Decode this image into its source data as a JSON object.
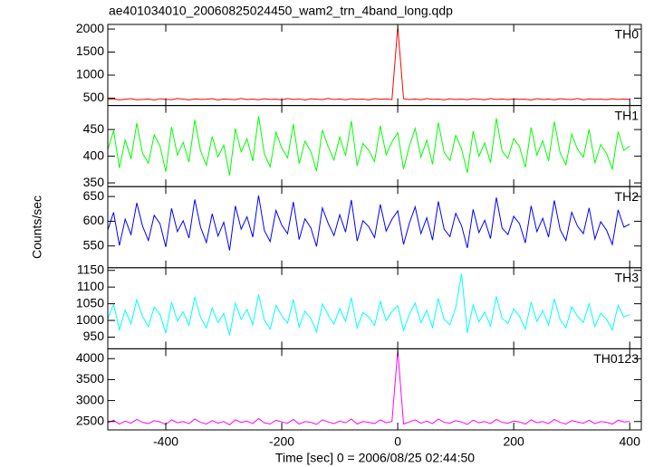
{
  "chart_data": {
    "type": "line",
    "title": "ae401034010_20060825024450_wam2_trn_4band_long.qdp",
    "xlabel": "Time [sec] 0 = 2006/08/25 02:44:50",
    "ylabel": "Counts/sec",
    "xlim": [
      -500,
      420
    ],
    "xticks": [
      -400,
      -200,
      0,
      200,
      400
    ],
    "x": [
      -500,
      -490,
      -480,
      -470,
      -460,
      -450,
      -440,
      -430,
      -420,
      -410,
      -400,
      -390,
      -380,
      -370,
      -360,
      -350,
      -340,
      -330,
      -320,
      -310,
      -300,
      -290,
      -280,
      -270,
      -260,
      -250,
      -240,
      -230,
      -220,
      -210,
      -200,
      -190,
      -180,
      -170,
      -160,
      -150,
      -140,
      -130,
      -120,
      -110,
      -100,
      -90,
      -80,
      -70,
      -60,
      -50,
      -40,
      -30,
      -20,
      -10,
      0,
      10,
      20,
      30,
      40,
      50,
      60,
      70,
      80,
      90,
      100,
      110,
      120,
      130,
      140,
      150,
      160,
      170,
      180,
      190,
      200,
      210,
      220,
      230,
      240,
      250,
      260,
      270,
      280,
      290,
      300,
      310,
      320,
      330,
      340,
      350,
      360,
      370,
      380,
      390,
      400
    ],
    "panels": [
      {
        "name": "TH0",
        "color": "#ff0000",
        "ylim": [
          340,
          2100
        ],
        "yticks": [
          500,
          1000,
          1500,
          2000
        ],
        "values": [
          470,
          485,
          462,
          478,
          490,
          466,
          473,
          481,
          459,
          488,
          474,
          467,
          492,
          479,
          463,
          484,
          471,
          476,
          489,
          461,
          482,
          475,
          468,
          493,
          470,
          480,
          464,
          487,
          472,
          478,
          466,
          491,
          473,
          483,
          460,
          486,
          477,
          469,
          494,
          471,
          481,
          465,
          488,
          474,
          479,
          463,
          490,
          476,
          484,
          468,
          2050,
          487,
          470,
          482,
          466,
          491,
          475,
          479,
          462,
          486,
          473,
          480,
          468,
          489,
          477,
          464,
          492,
          471,
          483,
          467,
          485,
          474,
          478,
          461,
          490,
          472,
          481,
          466,
          487,
          476,
          470,
          493,
          463,
          484,
          475,
          479,
          468,
          488,
          472,
          481,
          474
        ]
      },
      {
        "name": "TH1",
        "color": "#00ff00",
        "ylim": [
          343,
          495
        ],
        "yticks": [
          350,
          400,
          450
        ],
        "values": [
          412,
          448,
          378,
          431,
          395,
          462,
          405,
          387,
          440,
          419,
          371,
          455,
          402,
          426,
          389,
          468,
          410,
          383,
          437,
          399,
          421,
          364,
          452,
          408,
          433,
          391,
          475,
          404,
          380,
          445,
          415,
          397,
          460,
          386,
          428,
          409,
          372,
          449,
          418,
          393,
          436,
          401,
          466,
          382,
          424,
          411,
          390,
          457,
          403,
          427,
          444,
          376,
          419,
          452,
          398,
          430,
          385,
          463,
          407,
          392,
          439,
          414,
          369,
          447,
          400,
          425,
          388,
          471,
          409,
          396,
          433,
          418,
          379,
          454,
          402,
          429,
          391,
          465,
          406,
          384,
          441,
          413,
          398,
          450,
          387,
          422,
          405,
          376,
          446,
          411,
          419
        ]
      },
      {
        "name": "TH2",
        "color": "#0000ff",
        "ylim": [
          506,
          670
        ],
        "yticks": [
          550,
          600,
          650
        ],
        "values": [
          582,
          618,
          551,
          604,
          573,
          637,
          590,
          561,
          612,
          595,
          548,
          626,
          579,
          601,
          566,
          644,
          588,
          557,
          615,
          570,
          598,
          541,
          631,
          584,
          609,
          568,
          652,
          581,
          559,
          622,
          592,
          575,
          639,
          563,
          605,
          587,
          549,
          627,
          596,
          571,
          613,
          578,
          643,
          560,
          601,
          589,
          567,
          634,
          580,
          604,
          621,
          553,
          596,
          629,
          575,
          607,
          562,
          640,
          584,
          569,
          616,
          591,
          546,
          624,
          577,
          602,
          565,
          648,
          586,
          573,
          610,
          595,
          556,
          631,
          579,
          606,
          568,
          642,
          583,
          561,
          618,
          590,
          575,
          627,
          564,
          599,
          582,
          553,
          623,
          588,
          594
        ]
      },
      {
        "name": "TH3",
        "color": "#00ffff",
        "ylim": [
          915,
          1158
        ],
        "yticks": [
          950,
          1000,
          1050,
          1100,
          1150
        ],
        "values": [
          1005,
          1048,
          972,
          1031,
          990,
          1062,
          1012,
          981,
          1040,
          1018,
          962,
          1055,
          998,
          1026,
          985,
          1070,
          1009,
          978,
          1037,
          994,
          1021,
          955,
          1052,
          1003,
          1033,
          987,
          1078,
          1001,
          974,
          1045,
          1014,
          992,
          1063,
          980,
          1028,
          1006,
          966,
          1049,
          1017,
          989,
          1036,
          997,
          1068,
          977,
          1024,
          1010,
          985,
          1057,
          999,
          1027,
          1044,
          970,
          1018,
          1052,
          993,
          1030,
          979,
          1066,
          1003,
          987,
          1039,
          1140,
          963,
          1047,
          996,
          1025,
          983,
          1072,
          1006,
          991,
          1034,
          1013,
          974,
          1055,
          997,
          1029,
          986,
          1065,
          1002,
          978,
          1041,
          1012,
          994,
          1050,
          982,
          1022,
          1004,
          971,
          1046,
          1010,
          1018
        ]
      },
      {
        "name": "TH0123",
        "color": "#ff00ff",
        "ylim": [
          2300,
          4235
        ],
        "yticks": [
          2500,
          3000,
          3500,
          4000
        ],
        "values": [
          2470,
          2530,
          2440,
          2510,
          2460,
          2550,
          2480,
          2450,
          2520,
          2490,
          2430,
          2540,
          2470,
          2500,
          2450,
          2560,
          2480,
          2440,
          2520,
          2460,
          2500,
          2420,
          2540,
          2480,
          2510,
          2450,
          2570,
          2470,
          2440,
          2530,
          2490,
          2460,
          2550,
          2440,
          2500,
          2480,
          2430,
          2540,
          2490,
          2450,
          2510,
          2470,
          2560,
          2440,
          2500,
          2480,
          2450,
          2540,
          2470,
          2500,
          4200,
          2440,
          2490,
          2540,
          2460,
          2510,
          2450,
          2560,
          2480,
          2460,
          2520,
          2490,
          2430,
          2530,
          2470,
          2500,
          2450,
          2550,
          2480,
          2460,
          2510,
          2490,
          2440,
          2540,
          2470,
          2500,
          2450,
          2550,
          2480,
          2440,
          2520,
          2490,
          2460,
          2530,
          2450,
          2500,
          2480,
          2440,
          2530,
          2490,
          2500
        ]
      }
    ]
  }
}
